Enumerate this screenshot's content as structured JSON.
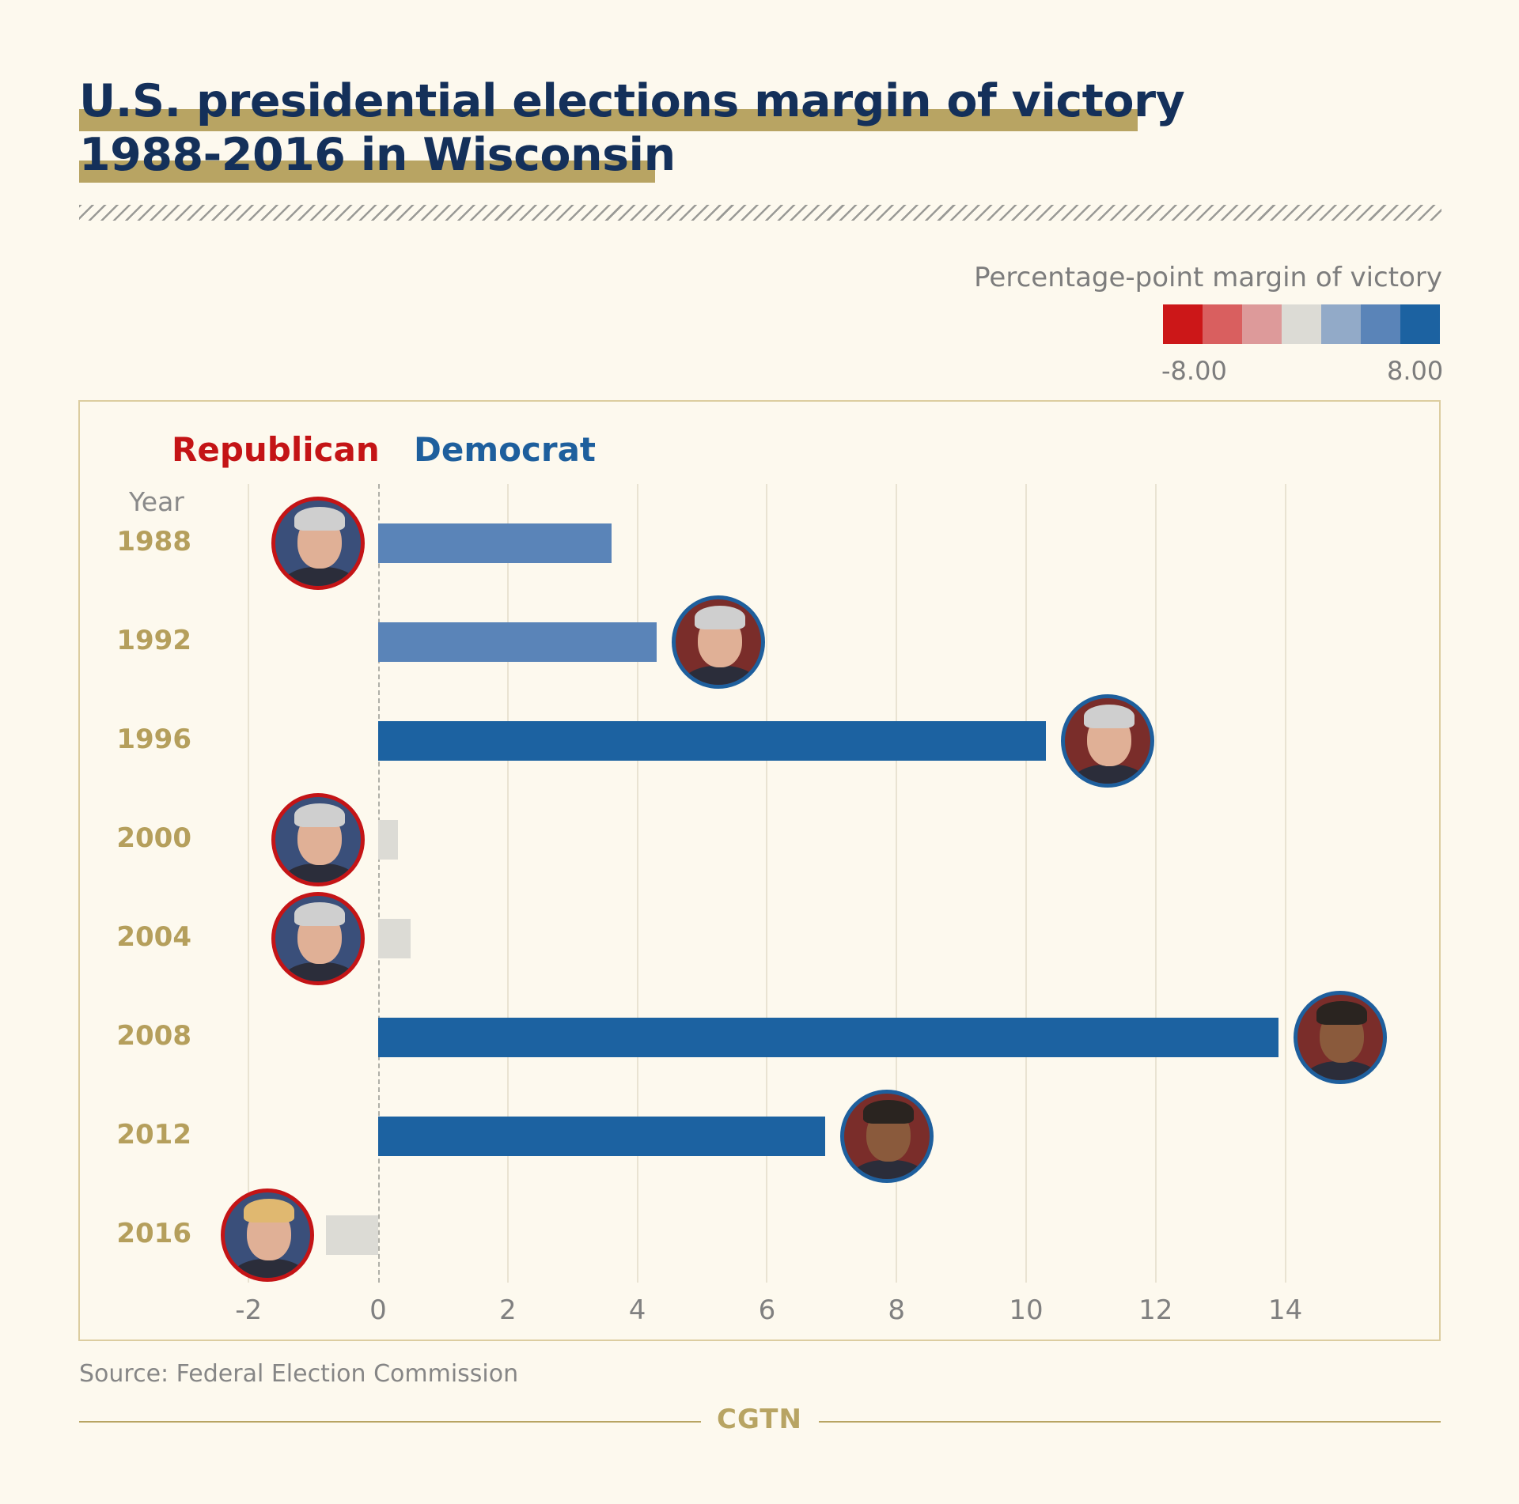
{
  "title": {
    "line1": "U.S. presidential elections margin of victory",
    "line2": "1988-2016 in Wisconsin"
  },
  "legend": {
    "title": "Percentage-point margin of victory",
    "min_label": "-8.00",
    "max_label": "8.00",
    "colors": [
      "#cc1718",
      "#d95f5f",
      "#dd9a9a",
      "#dcdbd5",
      "#92aac8",
      "#5a84b8",
      "#1c62a1"
    ]
  },
  "parties": {
    "republican": "Republican",
    "democrat": "Democrat",
    "republican_color": "#c41416",
    "democrat_color": "#1e5f9d"
  },
  "year_axis_label": "Year",
  "chart_data": {
    "type": "bar",
    "orientation": "horizontal",
    "categories": [
      "1988",
      "1992",
      "1996",
      "2000",
      "2004",
      "2008",
      "2012",
      "2016"
    ],
    "values": [
      3.6,
      4.3,
      10.3,
      0.3,
      0.5,
      13.9,
      6.9,
      -0.8
    ],
    "bar_colors": [
      "#5a84b8",
      "#5a84b8",
      "#1c62a1",
      "#dcdbd5",
      "#dcdbd5",
      "#1c62a1",
      "#1c62a1",
      "#dcdbd5"
    ],
    "winner_party": [
      "republican",
      "democrat",
      "democrat",
      "republican",
      "republican",
      "democrat",
      "democrat",
      "republican"
    ],
    "xlim": [
      -2,
      16
    ],
    "xticks": [
      "-2",
      "0",
      "2",
      "4",
      "6",
      "8",
      "10",
      "12",
      "14"
    ],
    "grid": true
  },
  "source": "Source: Federal Election Commission",
  "brand": "CGTN"
}
